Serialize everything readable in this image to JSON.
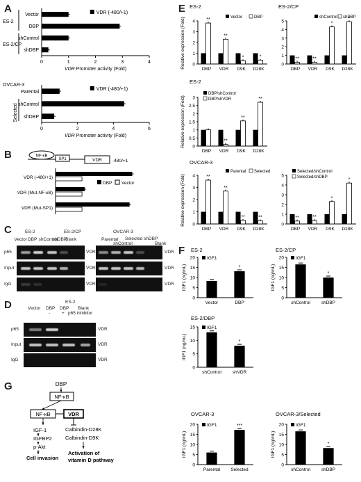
{
  "letters": {
    "A": "A",
    "B": "B",
    "C": "C",
    "D": "D",
    "E": "E",
    "F": "F",
    "G": "G"
  },
  "A": {
    "top": {
      "row_labels": [
        "Vector",
        "DBP",
        "shControl",
        "shDBP"
      ],
      "group_labels": [
        "ES-2",
        "ES-2/CP"
      ],
      "legend": "VDR (-480/+1)",
      "xlabel_italic": "VDR",
      "xlabel_rest": " Promoter activity (Fold)",
      "xticks": [
        "0",
        "1",
        "2",
        "3",
        "4"
      ],
      "values": [
        1.0,
        2.9,
        1.0,
        0.25
      ]
    },
    "bottom": {
      "row_labels": [
        "Parental",
        "shControl",
        "shDBP"
      ],
      "group_labels": [
        "OVCAR-3",
        "Selected"
      ],
      "legend": "VDR (-480/+1)",
      "xlabel_italic": "VDR",
      "xlabel_rest": " Promoter activity (Fold)",
      "xticks": [
        "0",
        "2",
        "4",
        "6"
      ],
      "values": [
        1.0,
        4.6,
        0.7
      ]
    }
  },
  "B": {
    "diagram": {
      "nfkb": "NF-κB",
      "sp1": "SP1",
      "vdr": "VDR",
      "range": "-480/+1"
    },
    "row_labels": [
      "VDR (-480/+1)",
      "VDR (Mut-NF-κB)",
      "VDR (Mut-SP1)"
    ],
    "legend": [
      "DBP",
      "Vector"
    ],
    "dbp": [
      2.9,
      1.1,
      2.8
    ],
    "vector": [
      1.0,
      1.0,
      1.0
    ]
  },
  "C": {
    "top_groups": [
      "ES-2",
      "ES-2/CP",
      "OVCAR-3"
    ],
    "lanes_left": [
      "Vector",
      "DBP",
      "shControl",
      "shDBP",
      "Blank"
    ],
    "lanes_right": [
      "Parental",
      "shControl",
      "Selected shDBP",
      "Blank"
    ],
    "rows": [
      "p65",
      "Input",
      "IgG"
    ],
    "right_label": "VDR"
  },
  "D": {
    "title": "ES-2",
    "lanes": [
      "Vector",
      "DBP",
      "DBP",
      "Blank"
    ],
    "sub": [
      "-",
      "+"
    ],
    "sub_label": "p65 inhibitor",
    "rows": [
      "p65",
      "Input",
      "IgG"
    ],
    "right_label": "VDR"
  },
  "E": {
    "ylabel": "Relative expression (Fold)",
    "categories": [
      "DBP",
      "VDR",
      "D9K",
      "D28K"
    ],
    "charts": [
      {
        "title": "ES-2",
        "legend": [
          "Vector",
          "DBP"
        ],
        "ymax": 4,
        "ticks": [
          "0",
          "1",
          "2",
          "3",
          "4"
        ],
        "black": [
          1,
          1,
          1,
          1
        ],
        "white": [
          3.8,
          2.3,
          0.3,
          0.35
        ],
        "marks": [
          "**",
          "**",
          "*",
          "*"
        ]
      },
      {
        "title": "ES-2/CP",
        "legend": [
          "shControl",
          "shDBP"
        ],
        "ymax": 5,
        "ticks": [
          "0",
          "1",
          "2",
          "3",
          "4",
          "5"
        ],
        "black": [
          1,
          1,
          1,
          1
        ],
        "white": [
          0.2,
          0.2,
          4.3,
          4.9
        ],
        "marks": [
          "**",
          "**",
          "*",
          "*"
        ]
      },
      {
        "title": "ES-2",
        "legend": [
          "DBP/shControl",
          "DBP/shVDR"
        ],
        "ymax": 3,
        "ticks": [
          "0",
          "0.5",
          "1",
          "1.5",
          "2",
          "2.5",
          "3"
        ],
        "black": [
          1,
          1,
          1,
          1
        ],
        "white": [
          1.0,
          0.1,
          1.55,
          2.7
        ],
        "marks": [
          "",
          "**",
          "**",
          "**"
        ]
      },
      {
        "title": "OVCAR-3",
        "legend": [
          "Parental",
          "Selected"
        ],
        "ymax": 4,
        "ticks": [
          "0",
          "1",
          "2",
          "3",
          "4"
        ],
        "black": [
          1,
          1,
          1,
          1
        ],
        "white": [
          3.6,
          2.7,
          0.3,
          0.25
        ],
        "marks": [
          "**",
          "**",
          "**",
          "**"
        ]
      },
      {
        "title": "",
        "legend": [
          "Selected/shControl",
          "Selected/shDBP"
        ],
        "ymax": 5,
        "ticks": [
          "0",
          "1",
          "2",
          "3",
          "4",
          "5"
        ],
        "black": [
          1,
          1,
          1,
          1
        ],
        "white": [
          0.3,
          0.35,
          2.3,
          4.2
        ],
        "marks": [
          "**",
          "**",
          "*",
          "*"
        ]
      }
    ]
  },
  "F": {
    "ylabel": "IGF1 (ng/mL)",
    "legend": "IGF1",
    "charts": [
      {
        "title": "ES-2",
        "cats": [
          "Vector",
          "DBP"
        ],
        "values": [
          8.3,
          13.1
        ],
        "ymax": 20,
        "ticks": [
          "0",
          "5",
          "10",
          "15",
          "20"
        ],
        "marks": [
          "",
          "*"
        ]
      },
      {
        "title": "ES-2/CP",
        "cats": [
          "shControl",
          "shDBP"
        ],
        "values": [
          16.5,
          10.0
        ],
        "ymax": 20,
        "ticks": [
          "0",
          "5",
          "10",
          "15",
          "20"
        ],
        "marks": [
          "",
          "*"
        ]
      },
      {
        "title": "ES-2/DBP",
        "cats": [
          "shControl",
          "shVDR"
        ],
        "values": [
          13.0,
          8.0
        ],
        "ymax": 15,
        "ticks": [
          "0",
          "5",
          "10",
          "15"
        ],
        "marks": [
          "",
          "*"
        ]
      },
      {
        "title": "OVCAR-3",
        "cats": [
          "Parental",
          "Selected"
        ],
        "values": [
          6.0,
          17.2
        ],
        "ymax": 20,
        "ticks": [
          "0",
          "5",
          "10",
          "15",
          "20"
        ],
        "marks": [
          "",
          "***"
        ]
      },
      {
        "title": "OVCAR-3/Selected",
        "cats": [
          "shControl",
          "shDBP"
        ],
        "values": [
          16.5,
          8.2
        ],
        "ymax": 20,
        "ticks": [
          "0",
          "5",
          "10",
          "15",
          "20"
        ],
        "marks": [
          "",
          "*"
        ]
      }
    ]
  },
  "G": {
    "dbp": "DBP",
    "nfkb": "NF-κB",
    "nfkb2": "NF-κB",
    "vdr": "VDR",
    "left": [
      "IGF-1",
      "IGFBP2",
      "p-Akt"
    ],
    "left_out": "Cell invasion",
    "right": [
      "Calbindin-D28K",
      "Calbindin-D9K"
    ],
    "right_out": "Activation of vitamin D pathway"
  }
}
